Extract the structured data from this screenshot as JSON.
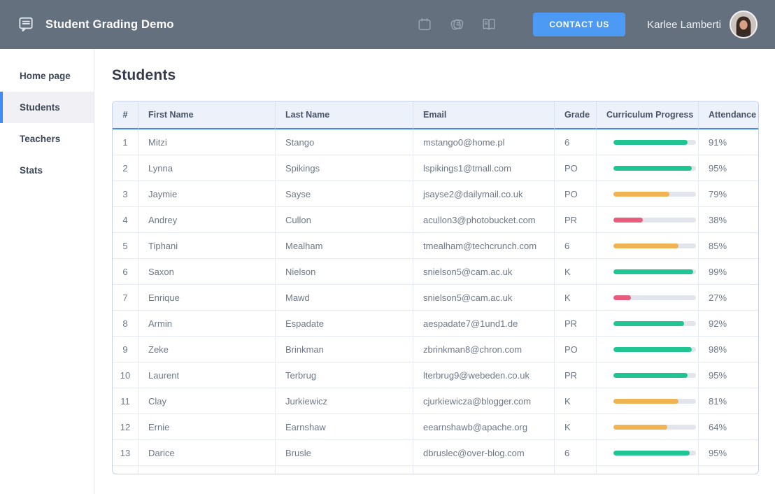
{
  "header": {
    "app_title": "Student Grading Demo",
    "contact_button": "CONTACT US",
    "user_name": "Karlee Lamberti",
    "icons": [
      {
        "name": "document-chat-icon"
      },
      {
        "name": "calendar-icon"
      },
      {
        "name": "notes-icon"
      },
      {
        "name": "open-book-icon"
      }
    ]
  },
  "sidebar": {
    "items": [
      {
        "label": "Home page",
        "active": false
      },
      {
        "label": "Students",
        "active": true
      },
      {
        "label": "Teachers",
        "active": false
      },
      {
        "label": "Stats",
        "active": false
      }
    ]
  },
  "main": {
    "title": "Students",
    "table": {
      "columns": [
        "#",
        "First Name",
        "Last Name",
        "Email",
        "Grade",
        "Curriculum Progress",
        "Attendance"
      ],
      "rows": [
        {
          "num": "1",
          "first": "Mitzi",
          "last": "Stango",
          "email": "mstango0@home.pl",
          "grade": "6",
          "progress": 90,
          "progress_color": "green",
          "attendance": "91%"
        },
        {
          "num": "2",
          "first": "Lynna",
          "last": "Spikings",
          "email": "lspikings1@tmall.com",
          "grade": "PO",
          "progress": 95,
          "progress_color": "green",
          "attendance": "95%"
        },
        {
          "num": "3",
          "first": "Jaymie",
          "last": "Sayse",
          "email": "jsayse2@dailymail.co.uk",
          "grade": "PO",
          "progress": 68,
          "progress_color": "orange",
          "attendance": "79%"
        },
        {
          "num": "4",
          "first": "Andrey",
          "last": "Cullon",
          "email": "acullon3@photobucket.com",
          "grade": "PR",
          "progress": 36,
          "progress_color": "pink",
          "attendance": "38%"
        },
        {
          "num": "5",
          "first": "Tiphani",
          "last": "Mealham",
          "email": "tmealham@techcrunch.com",
          "grade": "6",
          "progress": 79,
          "progress_color": "orange",
          "attendance": "85%"
        },
        {
          "num": "6",
          "first": "Saxon",
          "last": "Nielson",
          "email": "snielson5@cam.ac.uk",
          "grade": "K",
          "progress": 97,
          "progress_color": "green",
          "attendance": "99%"
        },
        {
          "num": "7",
          "first": "Enrique",
          "last": "Mawd",
          "email": "snielson5@cam.ac.uk",
          "grade": "K",
          "progress": 21,
          "progress_color": "pink",
          "attendance": "27%"
        },
        {
          "num": "8",
          "first": "Armin",
          "last": "Espadate",
          "email": "aespadate7@1und1.de",
          "grade": "PR",
          "progress": 86,
          "progress_color": "green",
          "attendance": "92%"
        },
        {
          "num": "9",
          "first": "Zeke",
          "last": "Brinkman",
          "email": "zbrinkman8@chron.com",
          "grade": "PO",
          "progress": 95,
          "progress_color": "green",
          "attendance": "98%"
        },
        {
          "num": "10",
          "first": "Laurent",
          "last": "Terbrug",
          "email": "lterbrug9@webeden.co.uk",
          "grade": "PR",
          "progress": 90,
          "progress_color": "green",
          "attendance": "95%"
        },
        {
          "num": "11",
          "first": "Clay",
          "last": "Jurkiewicz",
          "email": "cjurkiewicza@blogger.com",
          "grade": "K",
          "progress": 79,
          "progress_color": "orange",
          "attendance": "81%"
        },
        {
          "num": "12",
          "first": "Ernie",
          "last": "Earnshaw",
          "email": "eearnshawb@apache.org",
          "grade": "K",
          "progress": 65,
          "progress_color": "orange",
          "attendance": "64%"
        },
        {
          "num": "13",
          "first": "Darice",
          "last": "Brusle",
          "email": "dbruslec@over-blog.com",
          "grade": "6",
          "progress": 92,
          "progress_color": "green",
          "attendance": "95%"
        }
      ]
    }
  },
  "colors": {
    "header_bg": "#65707f",
    "contact_blue": "#4c9af4",
    "accent_blue": "#3e8cf6",
    "active_item_bg": "#f1f1f5",
    "green": "#21c593",
    "orange": "#f0b353",
    "pink": "#e85d7d",
    "track_gray": "#e2e5eb"
  }
}
